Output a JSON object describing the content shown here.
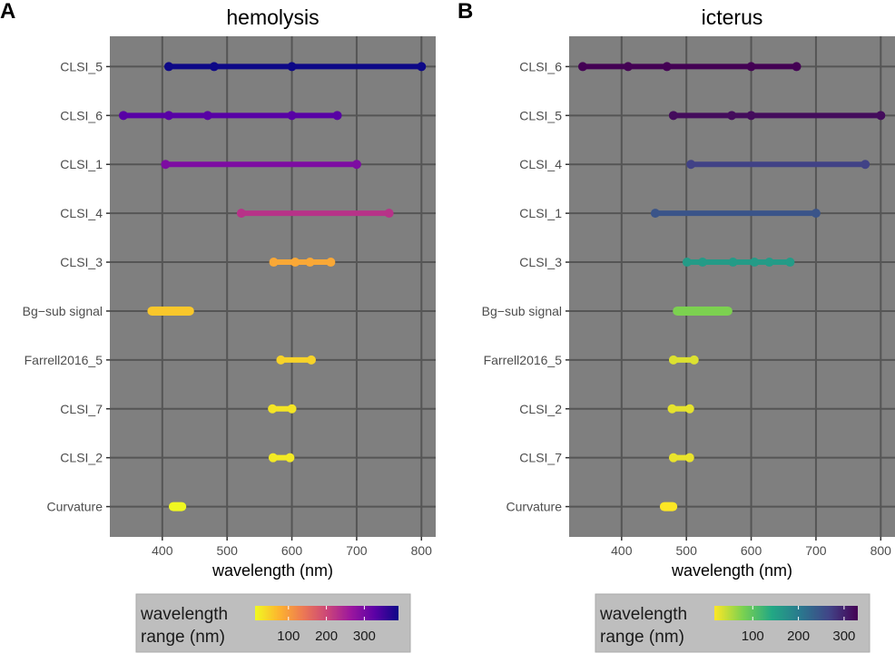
{
  "chart_data": [
    {
      "type": "dumbbell",
      "panel_label": "A",
      "title": "hemolysis",
      "xlabel": "wavelength (nm)",
      "xlim": [
        319,
        822
      ],
      "xticks": [
        400,
        500,
        600,
        700,
        800
      ],
      "grid": true,
      "colormap": "plasma",
      "color_limits": [
        12,
        390
      ],
      "legend": {
        "title_line1": "wavelength",
        "title_line2": "range (nm)",
        "ticks": [
          100,
          200,
          300
        ],
        "placement": "bottom"
      },
      "rows": [
        {
          "label": "CLSI_5",
          "points": [
            410,
            480,
            600,
            800
          ]
        },
        {
          "label": "CLSI_6",
          "points": [
            340,
            410,
            470,
            600,
            670
          ]
        },
        {
          "label": "CLSI_1",
          "points": [
            405,
            700
          ]
        },
        {
          "label": "CLSI_4",
          "points": [
            522,
            750
          ]
        },
        {
          "label": "CLSI_3",
          "points": [
            572,
            605,
            628,
            660
          ]
        },
        {
          "label": "Bg−sub signal",
          "range": [
            384,
            442
          ]
        },
        {
          "label": "Farrell2016_5",
          "points": [
            583,
            630
          ]
        },
        {
          "label": "CLSI_7",
          "points": [
            570,
            600
          ]
        },
        {
          "label": "CLSI_2",
          "points": [
            571,
            597
          ]
        },
        {
          "label": "Curvature",
          "range": [
            417,
            430
          ]
        }
      ]
    },
    {
      "type": "dumbbell",
      "panel_label": "B",
      "title": "icterus",
      "xlabel": "wavelength (nm)",
      "xlim": [
        319,
        822
      ],
      "xticks": [
        400,
        500,
        600,
        700,
        800
      ],
      "grid": true,
      "colormap": "viridis",
      "color_limits": [
        16,
        330
      ],
      "legend": {
        "title_line1": "wavelength",
        "title_line2": "range (nm)",
        "ticks": [
          100,
          200,
          300
        ],
        "placement": "bottom"
      },
      "rows": [
        {
          "label": "CLSI_6",
          "points": [
            340,
            410,
            470,
            600,
            670
          ]
        },
        {
          "label": "CLSI_5",
          "points": [
            480,
            570,
            600,
            800
          ]
        },
        {
          "label": "CLSI_4",
          "points": [
            507,
            776
          ]
        },
        {
          "label": "CLSI_1",
          "points": [
            452,
            700
          ]
        },
        {
          "label": "CLSI_3",
          "points": [
            501,
            525,
            572,
            605,
            628,
            660
          ]
        },
        {
          "label": "Bg−sub signal",
          "range": [
            486,
            564
          ]
        },
        {
          "label": "Farrell2016_5",
          "points": [
            480,
            512
          ]
        },
        {
          "label": "CLSI_2",
          "points": [
            478,
            505
          ]
        },
        {
          "label": "CLSI_7",
          "points": [
            480,
            505
          ]
        },
        {
          "label": "Curvature",
          "range": [
            466,
            479
          ]
        }
      ]
    }
  ]
}
